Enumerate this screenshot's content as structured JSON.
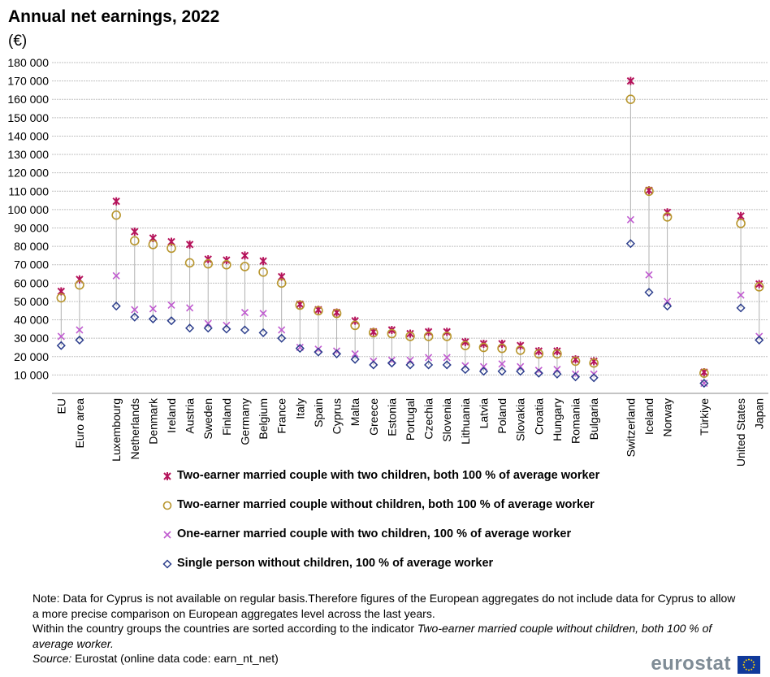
{
  "title": "Annual net earnings, 2022",
  "unit": "(€)",
  "colors": {
    "two_earner_children": "#b5135b",
    "two_earner_no_children": "#b8962e",
    "one_earner": "#c05bd0",
    "single": "#2c3e8c",
    "grid": "#c0c0c0",
    "connector": "#b0b0b0"
  },
  "chart_data": {
    "type": "scatter",
    "categories": [
      "EU",
      "Euro area",
      "Luxembourg",
      "Netherlands",
      "Denmark",
      "Ireland",
      "Austria",
      "Sweden",
      "Finland",
      "Germany",
      "Belgium",
      "France",
      "Italy",
      "Spain",
      "Cyprus",
      "Malta",
      "Greece",
      "Estonia",
      "Portugal",
      "Czechia",
      "Slovenia",
      "Lithuania",
      "Latvia",
      "Poland",
      "Slovakia",
      "Croatia",
      "Hungary",
      "Romania",
      "Bulgaria",
      "Switzerland",
      "Iceland",
      "Norway",
      "Türkiye",
      "United States",
      "Japan"
    ],
    "groups": [
      2,
      27,
      3,
      1,
      2
    ],
    "ylim": [
      0,
      180000
    ],
    "yticks": [
      10000,
      20000,
      30000,
      40000,
      50000,
      60000,
      70000,
      80000,
      90000,
      100000,
      110000,
      120000,
      130000,
      140000,
      150000,
      160000,
      170000,
      180000
    ],
    "ytick_labels": [
      "10 000",
      "20 000",
      "30 000",
      "40 000",
      "50 000",
      "60 000",
      "70 000",
      "80 000",
      "90 000",
      "100 000",
      "110 000",
      "120 000",
      "130 000",
      "140 000",
      "150 000",
      "160 000",
      "170 000",
      "180 000"
    ],
    "grid": true,
    "series": [
      {
        "name": "Two-earner married couple with two children, both 100 % of average worker",
        "marker": "x-star",
        "values": [
          55500,
          62000,
          104500,
          88000,
          84500,
          82500,
          81000,
          73000,
          72500,
          75000,
          72000,
          63500,
          48500,
          45500,
          44000,
          39500,
          33500,
          34500,
          32500,
          33500,
          33500,
          28000,
          27000,
          27000,
          26000,
          23000,
          23000,
          18500,
          17500,
          170000,
          110500,
          98500,
          11500,
          96500,
          59500
        ]
      },
      {
        "name": "Two-earner married couple without children, both 100 % of average worker",
        "marker": "circle",
        "values": [
          52000,
          59000,
          97000,
          83000,
          81000,
          79000,
          71000,
          70500,
          70000,
          69000,
          66000,
          60000,
          48000,
          45000,
          43500,
          37000,
          33000,
          32500,
          31000,
          31000,
          31000,
          26000,
          25000,
          24500,
          23500,
          21500,
          21500,
          17500,
          16500,
          160000,
          110000,
          96000,
          11000,
          92500,
          58000
        ]
      },
      {
        "name": "One-earner married couple with two children, 100 % of average worker",
        "marker": "x",
        "values": [
          31000,
          34500,
          64000,
          45500,
          46000,
          48000,
          46500,
          38000,
          37000,
          44000,
          43500,
          34500,
          25000,
          24000,
          23000,
          21500,
          17500,
          18000,
          18000,
          19500,
          19500,
          15000,
          14500,
          16000,
          14500,
          12500,
          13000,
          10500,
          10500,
          94500,
          64500,
          50000,
          5500,
          53500,
          31000
        ]
      },
      {
        "name": "Single person without children, 100 % of average worker",
        "marker": "diamond",
        "values": [
          26000,
          29000,
          47500,
          41500,
          40500,
          39500,
          35500,
          35500,
          35000,
          34500,
          33000,
          30000,
          24500,
          22500,
          21500,
          18500,
          15500,
          16500,
          15500,
          15500,
          15500,
          13000,
          12000,
          12000,
          12000,
          11000,
          10500,
          9000,
          8500,
          81500,
          55000,
          47500,
          5500,
          46500,
          29000
        ]
      }
    ]
  },
  "legend": [
    {
      "label": "Two-earner married couple with two children, both 100 % of average worker"
    },
    {
      "label": "Two-earner married couple without children, both 100 % of average worker"
    },
    {
      "label": "One-earner married couple with two children, 100 % of average worker"
    },
    {
      "label": "Single person without children, 100 % of average worker"
    }
  ],
  "notes": {
    "line1": "Note: Data for Cyprus is not available on regular basis.Therefore figures of the European aggregates do not include data for Cyprus to allow a more precise comparison on European aggregates level across the last years.",
    "line2_plain": "Within the country groups the countries are sorted according to the indicator ",
    "line2_italic": "Two-earner married couple without children, both 100 % of average worker.",
    "source_label": "Source:",
    "source_text": " Eurostat (online data code: earn_nt_net)"
  },
  "logo": {
    "word": "eurostat"
  }
}
